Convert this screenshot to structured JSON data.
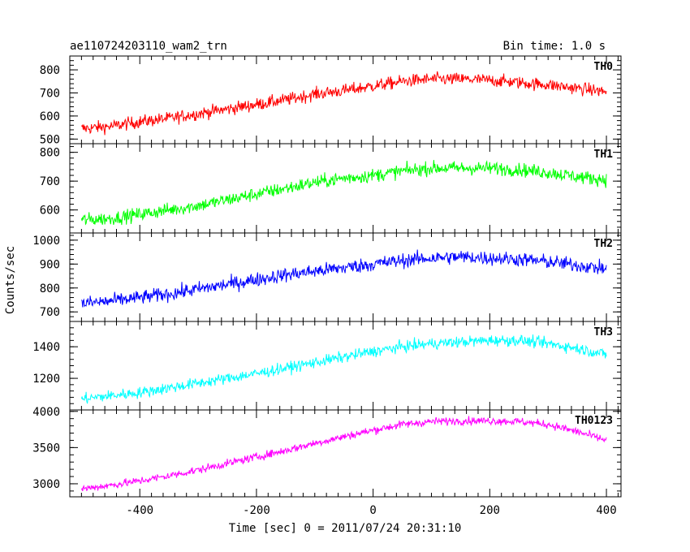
{
  "chart_data": {
    "type": "line",
    "title": "ae110724203110_wam2_trn",
    "bin_time": "Bin time: 1.0 s",
    "xlabel": "Time [sec] 0 = 2011/07/24 20:31:10",
    "ylabel": "Counts/sec",
    "xlim": [
      -520,
      425
    ],
    "x_ticks": [
      -400,
      -200,
      0,
      200,
      400
    ],
    "series": [
      {
        "name": "TH0",
        "color": "#ff0000",
        "ylim": [
          480,
          860
        ],
        "y_ticks": [
          500,
          600,
          700,
          800
        ],
        "x": [
          -500,
          -450,
          -400,
          -350,
          -300,
          -250,
          -200,
          -150,
          -100,
          -50,
          0,
          50,
          100,
          150,
          200,
          250,
          300,
          350,
          400
        ],
        "values": [
          545,
          555,
          575,
          590,
          610,
          630,
          650,
          670,
          695,
          710,
          730,
          750,
          760,
          760,
          755,
          745,
          735,
          720,
          705
        ],
        "noise": 35
      },
      {
        "name": "TH1",
        "color": "#00ff00",
        "ylim": [
          520,
          830
        ],
        "y_ticks": [
          600,
          700,
          800
        ],
        "x": [
          -500,
          -450,
          -400,
          -350,
          -300,
          -250,
          -200,
          -150,
          -100,
          -50,
          0,
          50,
          100,
          150,
          200,
          250,
          300,
          350,
          400
        ],
        "values": [
          565,
          570,
          585,
          600,
          615,
          635,
          655,
          675,
          695,
          710,
          720,
          735,
          745,
          745,
          745,
          740,
          730,
          715,
          705
        ],
        "noise": 30
      },
      {
        "name": "TH2",
        "color": "#0000ff",
        "ylim": [
          660,
          1030
        ],
        "y_ticks": [
          700,
          800,
          900,
          1000
        ],
        "x": [
          -500,
          -450,
          -400,
          -350,
          -300,
          -250,
          -200,
          -150,
          -100,
          -50,
          0,
          50,
          100,
          150,
          200,
          250,
          300,
          350,
          400
        ],
        "values": [
          735,
          745,
          760,
          775,
          795,
          815,
          835,
          855,
          870,
          885,
          900,
          915,
          925,
          930,
          925,
          920,
          910,
          895,
          880
        ],
        "noise": 38
      },
      {
        "name": "TH3",
        "color": "#00ffff",
        "ylim": [
          1000,
          1560
        ],
        "y_ticks": [
          1200,
          1400
        ],
        "x": [
          -500,
          -450,
          -400,
          -350,
          -300,
          -250,
          -200,
          -150,
          -100,
          -50,
          0,
          50,
          100,
          150,
          200,
          250,
          300,
          350,
          400
        ],
        "values": [
          1070,
          1090,
          1110,
          1140,
          1170,
          1200,
          1230,
          1265,
          1300,
          1335,
          1370,
          1400,
          1420,
          1430,
          1440,
          1440,
          1420,
          1390,
          1350
        ],
        "noise": 45
      },
      {
        "name": "TH0123",
        "color": "#ff00ff",
        "ylim": [
          2820,
          4020
        ],
        "y_ticks": [
          3000,
          3500,
          4000
        ],
        "x": [
          -500,
          -450,
          -400,
          -350,
          -300,
          -250,
          -200,
          -150,
          -100,
          -50,
          0,
          50,
          100,
          150,
          200,
          250,
          300,
          350,
          400
        ],
        "values": [
          2930,
          2980,
          3040,
          3110,
          3190,
          3280,
          3370,
          3460,
          3560,
          3650,
          3740,
          3820,
          3860,
          3870,
          3870,
          3860,
          3820,
          3720,
          3600
        ],
        "noise": 70
      }
    ]
  }
}
